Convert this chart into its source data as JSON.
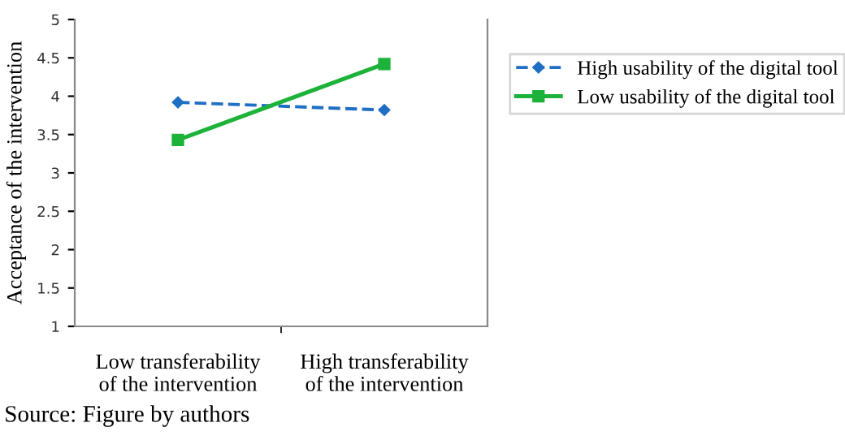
{
  "chart_data": {
    "type": "line",
    "ylabel": "Acceptance of the intervention",
    "categories": [
      "Low transferability\nof the intervention",
      "High transferability\nof the intervention"
    ],
    "series": [
      {
        "name": "High usability of the digital tool",
        "color": "#1f6fc5",
        "values": [
          3.92,
          3.82
        ],
        "marker": "diamond",
        "line_style": "dashed"
      },
      {
        "name": "Low usability of the digital tool",
        "color": "#1db33a",
        "values": [
          3.43,
          4.42
        ],
        "marker": "square",
        "line_style": "solid"
      }
    ],
    "ylim": [
      1,
      5
    ],
    "yticks": [
      1,
      1.5,
      2,
      2.5,
      3,
      3.5,
      4,
      4.5,
      5
    ],
    "grid": false,
    "legend": "right",
    "annotations": [
      "Source: Figure by authors"
    ]
  }
}
